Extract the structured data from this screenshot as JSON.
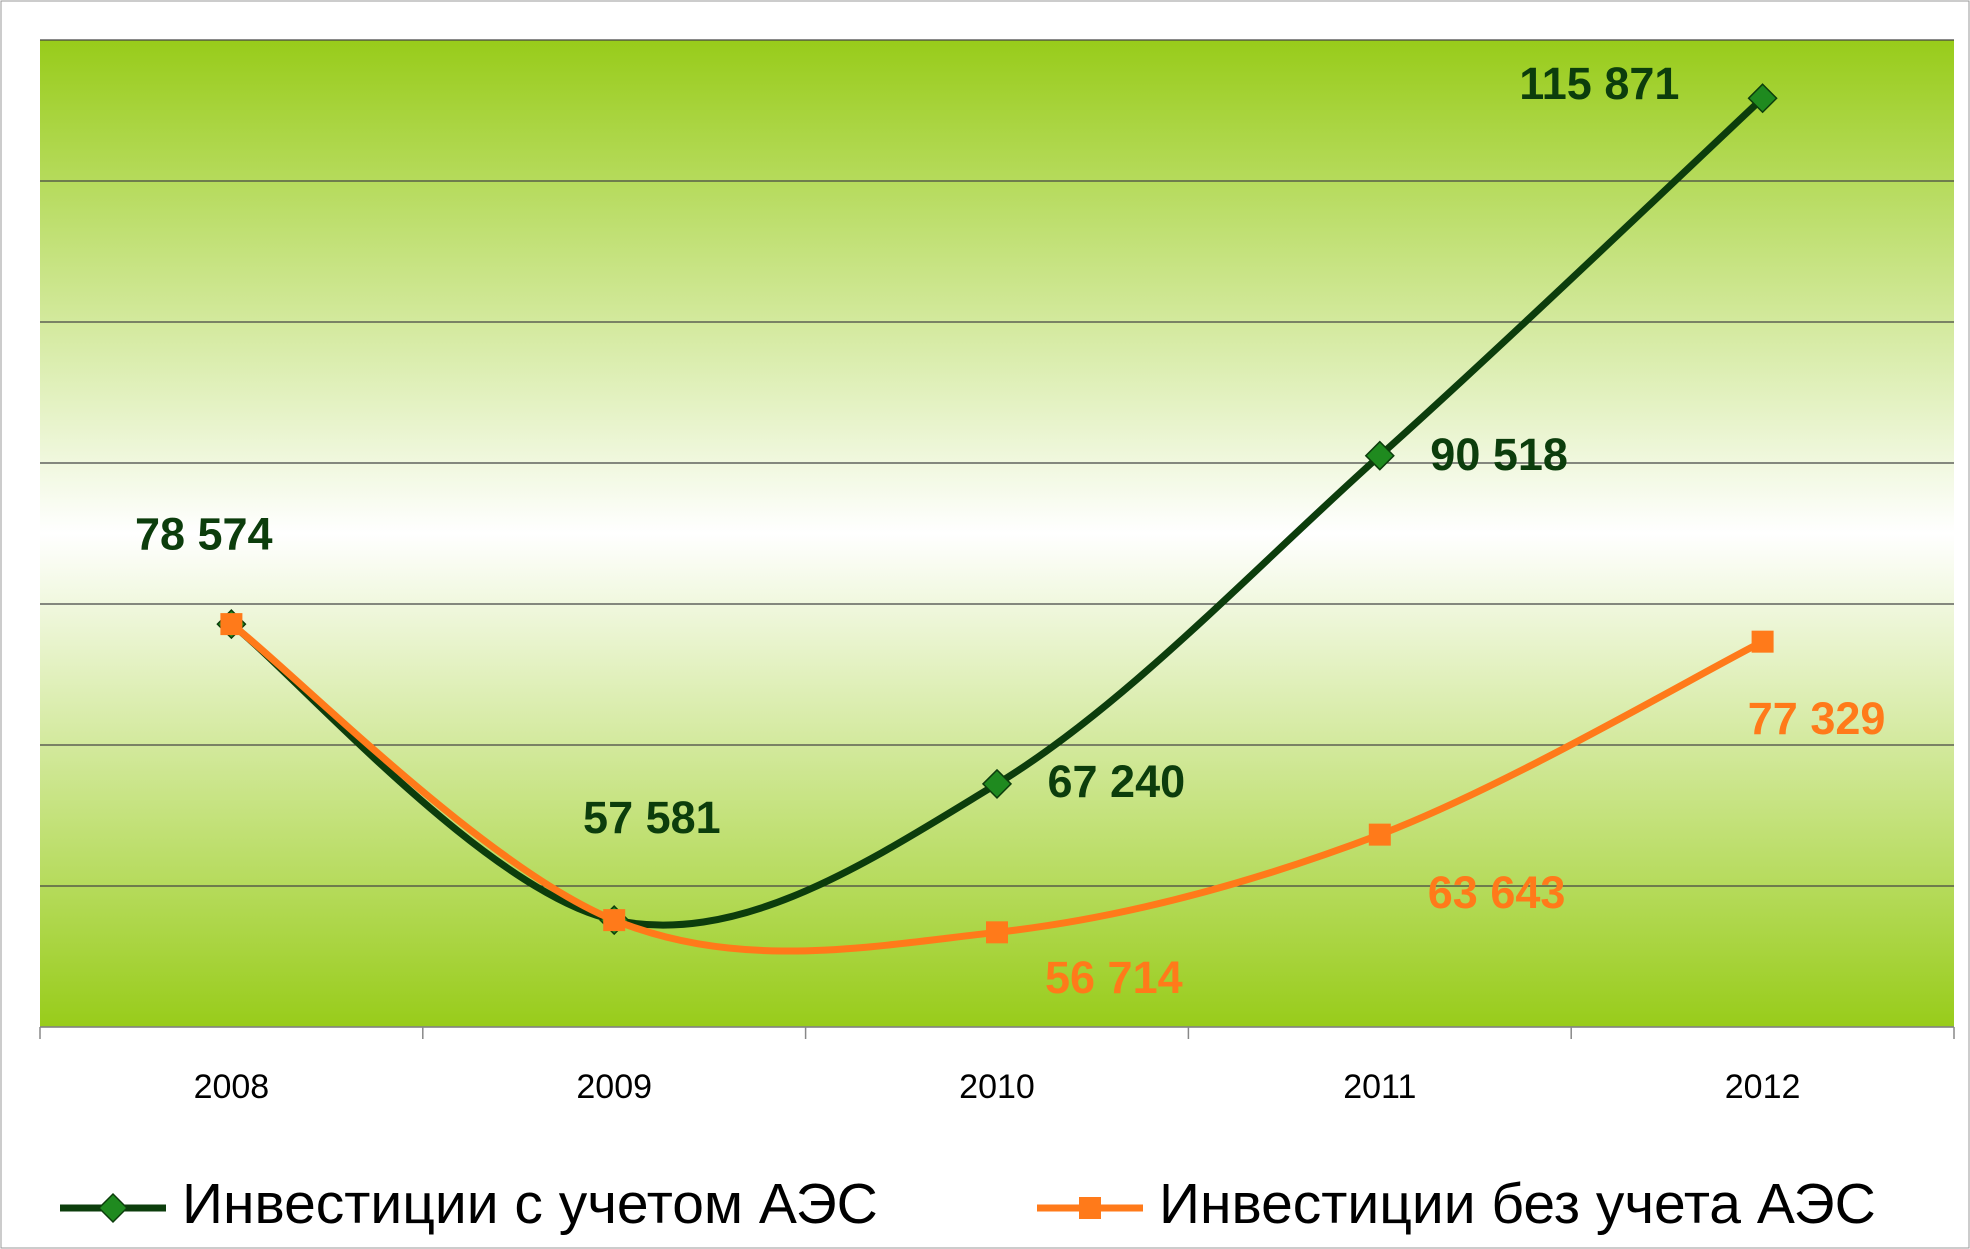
{
  "chart_data": {
    "type": "line",
    "categories": [
      "2008",
      "2009",
      "2010",
      "2011",
      "2012"
    ],
    "series": [
      {
        "name": "Инвестиции с учетом АЭС",
        "color": "#0c3d0c",
        "marker": "diamond",
        "marker_color": "#1f8a1f",
        "values": [
          78574,
          57581,
          67240,
          90518,
          115871
        ],
        "value_labels": [
          "78 574",
          "57 581",
          "67 240",
          "90 518",
          "115 871"
        ]
      },
      {
        "name": "Инвестиции без учета АЭС",
        "color": "#ff7a1a",
        "marker": "square",
        "marker_color": "#ff7a1a",
        "values": [
          78574,
          57581,
          56714,
          63643,
          77329
        ],
        "value_labels": [
          null,
          null,
          "56 714",
          "63 643",
          "77 329"
        ]
      }
    ],
    "ylim": [
      50000,
      120000
    ],
    "yticks": [
      50000,
      60000,
      70000,
      80000,
      90000,
      100000,
      110000,
      120000
    ],
    "grid": true,
    "smooth": true,
    "legend": "bottom"
  }
}
